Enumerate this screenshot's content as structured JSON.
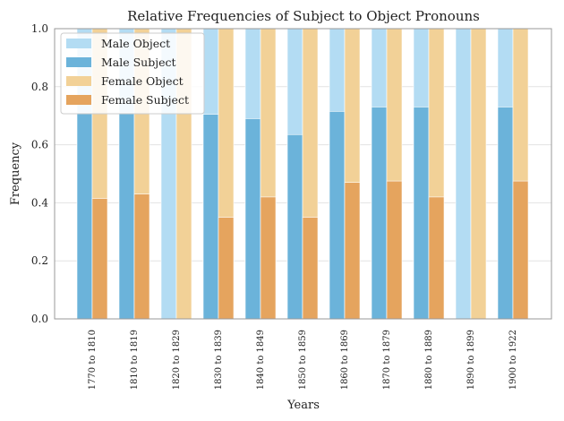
{
  "chart_data": {
    "type": "bar",
    "title": "Relative Frequencies of Subject to Object Pronouns",
    "xlabel": "Years",
    "ylabel": "Frequency",
    "ylim": [
      0,
      1.0
    ],
    "yticks": [
      "0.0",
      "0.2",
      "0.4",
      "0.6",
      "0.8",
      "1.0"
    ],
    "grid": true,
    "legend_position": "top-left",
    "categories": [
      "1770 to 1810",
      "1810 to 1819",
      "1820 to 1829",
      "1830 to 1839",
      "1840 to 1849",
      "1850 to 1859",
      "1860 to 1869",
      "1870 to 1879",
      "1880 to 1889",
      "1890 to 1899",
      "1900 to 1922"
    ],
    "series": [
      {
        "name": "Male Object",
        "color": "#b3dcf3",
        "values": [
          1,
          1,
          1,
          1,
          1,
          1,
          1,
          1,
          1,
          1,
          1
        ]
      },
      {
        "name": "Male Subject",
        "color": "#6bb3da",
        "values": [
          0.71,
          0.71,
          0,
          0.705,
          0.69,
          0.635,
          0.715,
          0.73,
          0.73,
          0,
          0.73
        ]
      },
      {
        "name": "Female Object",
        "color": "#f2d197",
        "values": [
          1,
          1,
          1,
          1,
          1,
          1,
          1,
          1,
          1,
          1,
          1
        ]
      },
      {
        "name": "Female Subject",
        "color": "#e5a45e",
        "values": [
          0.415,
          0.43,
          0,
          0.35,
          0.42,
          0.35,
          0.47,
          0.475,
          0.42,
          0,
          0.475
        ]
      }
    ]
  }
}
